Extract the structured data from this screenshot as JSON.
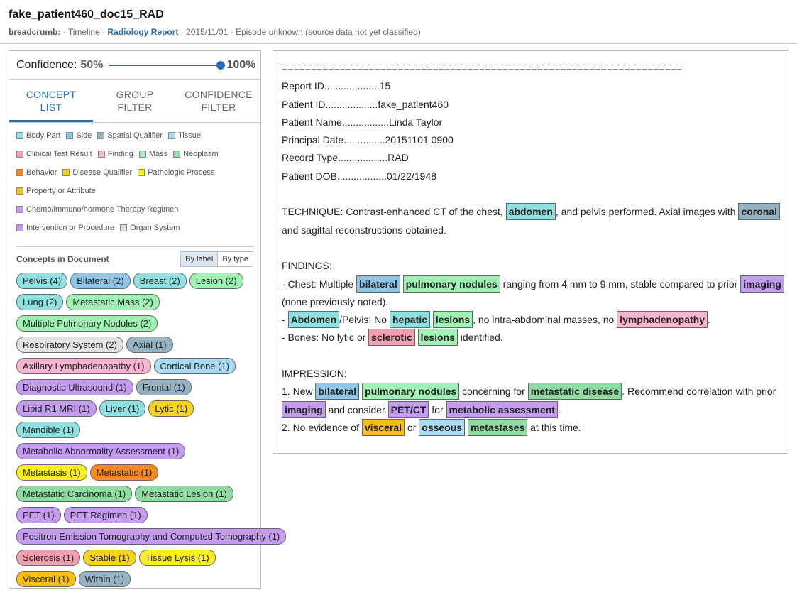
{
  "header": {
    "title": "fake_patient460_doc15_RAD",
    "breadcrumb_label": "breadcrumb:",
    "bc_sep1": "·",
    "timeline": "Timeline",
    "bc_sep2": "·",
    "report": "Radiology Report",
    "bc_rest": "· 2015/11/01 · Episode unknown (source data not yet classified)"
  },
  "confidence": {
    "label": "Confidence:",
    "min": "50%",
    "max": "100%",
    "value": 1.0
  },
  "tabs": [
    {
      "line1": "CONCEPT",
      "line2": "LIST"
    },
    {
      "line1": "GROUP",
      "line2": "FILTER"
    },
    {
      "line1": "CONFIDENCE",
      "line2": "FILTER"
    }
  ],
  "legend": [
    {
      "label": "Body Part",
      "color": "#8fe0e0"
    },
    {
      "label": "Side",
      "color": "#8ec6ea"
    },
    {
      "label": "Spatial Qualifier",
      "color": "#95b3c4"
    },
    {
      "label": "Tissue",
      "color": "#a9dcf2"
    },
    {
      "label": "Clinical Test Result",
      "color": "#f29db0"
    },
    {
      "label": "Finding",
      "color": "#f8b6d0"
    },
    {
      "label": "Mass",
      "color": "#9ef2b3"
    },
    {
      "label": "Neoplasm",
      "color": "#8fdca2"
    },
    {
      "label": "Behavior",
      "color": "#f58a1f"
    },
    {
      "label": "Disease Qualifier",
      "color": "#f7d31a"
    },
    {
      "label": "Pathologic Process",
      "color": "#fdee1e"
    },
    {
      "label": "Property or Attribute",
      "color": "#f7be14"
    },
    {
      "label": "Chemo/immuno/hormone Therapy Regimen",
      "color": "#c49df0"
    },
    {
      "label": "Intervention or Procedure",
      "color": "#c49df0"
    },
    {
      "label": "Organ System",
      "color": "#e2e2e2"
    }
  ],
  "concepts_title": "Concepts in Document",
  "sort": {
    "by_label": "By label",
    "by_type": "By type"
  },
  "concepts": [
    {
      "label": "Pelvis (4)",
      "color": "#8fe0e0"
    },
    {
      "label": "Bilateral (2)",
      "color": "#8ec6ea"
    },
    {
      "label": "Breast (2)",
      "color": "#8fe0e0"
    },
    {
      "label": "Lesion (2)",
      "color": "#9ef2b3"
    },
    {
      "label": "Lung (2)",
      "color": "#8fe0e0"
    },
    {
      "label": "Metastatic Mass (2)",
      "color": "#9ef2b3"
    },
    {
      "label": "Multiple Pulmonary Nodules (2)",
      "color": "#9ef2b3"
    },
    {
      "label": "Respiratory System (2)",
      "color": "#e2e2e2"
    },
    {
      "label": "Axial (1)",
      "color": "#95b3c4"
    },
    {
      "label": "Axillary Lymphadenopathy (1)",
      "color": "#f8b6d0"
    },
    {
      "label": "Cortical Bone (1)",
      "color": "#a9dcf2"
    },
    {
      "label": "Diagnostic Ultrasound (1)",
      "color": "#c49df0"
    },
    {
      "label": "Frontal (1)",
      "color": "#95b3c4"
    },
    {
      "label": "Lipid R1 MRI (1)",
      "color": "#c49df0"
    },
    {
      "label": "Liver (1)",
      "color": "#8fe0e0"
    },
    {
      "label": "Lytic (1)",
      "color": "#f7d31a"
    },
    {
      "label": "Mandible (1)",
      "color": "#8fe0e0"
    },
    {
      "label": "Metabolic Abnormality Assessment (1)",
      "color": "#c49df0"
    },
    {
      "label": "Metastasis (1)",
      "color": "#fdee1e"
    },
    {
      "label": "Metastatic (1)",
      "color": "#f58a1f"
    },
    {
      "label": "Metastatic Carcinoma (1)",
      "color": "#8fdca2"
    },
    {
      "label": "Metastatic Lesion (1)",
      "color": "#8fdca2"
    },
    {
      "label": "PET (1)",
      "color": "#c49df0"
    },
    {
      "label": "PET Regimen (1)",
      "color": "#c49df0"
    },
    {
      "label": "Positron Emission Tomography and Computed Tomography (1)",
      "color": "#c49df0"
    },
    {
      "label": "Sclerosis (1)",
      "color": "#f29db0"
    },
    {
      "label": "Stable (1)",
      "color": "#f7d31a"
    },
    {
      "label": "Tissue Lysis (1)",
      "color": "#fdee1e"
    },
    {
      "label": "Visceral (1)",
      "color": "#f7be14"
    },
    {
      "label": "Within (1)",
      "color": "#95b3c4"
    }
  ],
  "report": {
    "lines": [
      [
        {
          "t": "====================================================================="
        }
      ],
      [
        {
          "t": "Report ID....................15"
        }
      ],
      [
        {
          "t": "Patient ID...................fake_patient460"
        }
      ],
      [
        {
          "t": "Patient Name.................Linda Taylor"
        }
      ],
      [
        {
          "t": "Principal Date...............20151101 0900"
        }
      ],
      [
        {
          "t": "Record Type..................RAD"
        }
      ],
      [
        {
          "t": "Patient DOB..................01/22/1948"
        }
      ],
      [],
      [
        {
          "t": "TECHNIQUE: Contrast-enhanced CT of the chest, "
        },
        {
          "h": "abdomen",
          "c": "#8fe0e0"
        },
        {
          "t": ", and pelvis performed. Axial images with "
        },
        {
          "h": "coronal",
          "c": "#95b3c4"
        }
      ],
      [
        {
          "t": "and sagittal reconstructions obtained."
        }
      ],
      [],
      [
        {
          "t": "FINDINGS:"
        }
      ],
      [
        {
          "t": "- Chest: Multiple "
        },
        {
          "h": "bilateral",
          "c": "#8ec6ea"
        },
        {
          "t": " "
        },
        {
          "h": "pulmonary nodules",
          "c": "#9ef2b3"
        },
        {
          "t": " ranging from 4 mm to 9 mm, stable compared to prior "
        },
        {
          "h": "imaging",
          "c": "#c49df0"
        }
      ],
      [
        {
          "t": "(none previously noted)."
        }
      ],
      [
        {
          "t": "- "
        },
        {
          "h": "Abdomen",
          "c": "#8fe0e0"
        },
        {
          "t": "/Pelvis: No "
        },
        {
          "h": "hepatic",
          "c": "#8fe0e0"
        },
        {
          "t": " "
        },
        {
          "h": "lesions",
          "c": "#9ef2b3"
        },
        {
          "t": ", no intra-abdominal masses, no "
        },
        {
          "h": "lymphadenopathy",
          "c": "#f8b6d0"
        },
        {
          "t": "."
        }
      ],
      [
        {
          "t": "- Bones: No lytic or "
        },
        {
          "h": "sclerotic",
          "c": "#f29db0"
        },
        {
          "t": " "
        },
        {
          "h": "lesions",
          "c": "#9ef2b3"
        },
        {
          "t": " identified."
        }
      ],
      [],
      [
        {
          "t": "IMPRESSION:"
        }
      ],
      [
        {
          "t": "1. New "
        },
        {
          "h": "bilateral",
          "c": "#8ec6ea"
        },
        {
          "t": " "
        },
        {
          "h": "pulmonary nodules",
          "c": "#9ef2b3"
        },
        {
          "t": " concerning for "
        },
        {
          "h": "metastatic disease",
          "c": "#8fdca2"
        },
        {
          "t": ". Recommend correlation with prior"
        }
      ],
      [
        {
          "h": "imaging",
          "c": "#c49df0"
        },
        {
          "t": " and consider "
        },
        {
          "h": "PET/CT",
          "c": "#c49df0"
        },
        {
          "t": " for "
        },
        {
          "h": "metabolic assessment",
          "c": "#c49df0"
        },
        {
          "t": "."
        }
      ],
      [
        {
          "t": "2. No evidence of "
        },
        {
          "h": "visceral",
          "c": "#f7be14"
        },
        {
          "t": " or "
        },
        {
          "h": "osseous",
          "c": "#a9dcf2"
        },
        {
          "t": " "
        },
        {
          "h": "metastases",
          "c": "#8fdca2"
        },
        {
          "t": " at this time."
        }
      ]
    ]
  }
}
